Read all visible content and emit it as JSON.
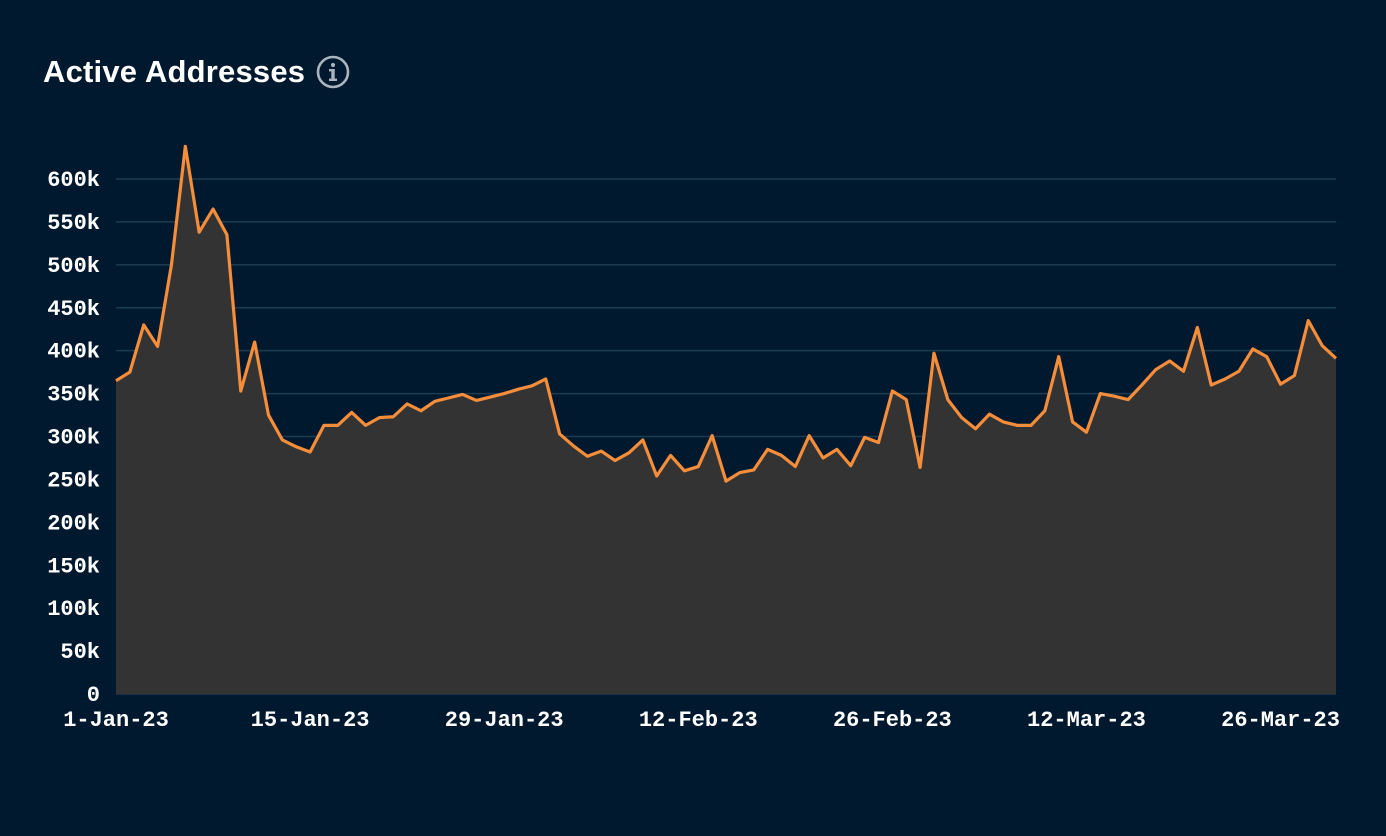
{
  "header": {
    "title": "Active Addresses",
    "info_icon": "info-circle-icon"
  },
  "colors": {
    "background": "#00192e",
    "line": "#f58d3a",
    "area": "#333333",
    "grid": "#1d3c52",
    "icon": "#aab4bd"
  },
  "chart_data": {
    "type": "area",
    "title": "Active Addresses",
    "xlabel": "",
    "ylabel": "",
    "ylim": [
      0,
      600000
    ],
    "grid": true,
    "legend": "none",
    "x_start": "2023-01-01",
    "x_end": "2023-03-30",
    "yticks": [
      0,
      50000,
      100000,
      150000,
      200000,
      250000,
      300000,
      350000,
      400000,
      450000,
      500000,
      550000,
      600000
    ],
    "ytick_labels": [
      "0",
      "50k",
      "100k",
      "150k",
      "200k",
      "250k",
      "300k",
      "350k",
      "400k",
      "450k",
      "500k",
      "550k",
      "600k"
    ],
    "xticks": [
      "2023-01-01",
      "2023-01-15",
      "2023-01-29",
      "2023-02-12",
      "2023-02-26",
      "2023-03-12",
      "2023-03-26"
    ],
    "xtick_labels": [
      "1-Jan-23",
      "15-Jan-23",
      "29-Jan-23",
      "12-Feb-23",
      "26-Feb-23",
      "12-Mar-23",
      "26-Mar-23"
    ],
    "series": [
      {
        "values": [
          365000,
          375000,
          430000,
          405000,
          500000,
          638000,
          538000,
          565000,
          535000,
          353000,
          410000,
          325000,
          296000,
          288000,
          282000,
          313000,
          313000,
          328000,
          313000,
          322000,
          323000,
          338000,
          330000,
          341000,
          345000,
          349000,
          342000,
          346000,
          350000,
          355000,
          359000,
          367000,
          303000,
          289000,
          277000,
          283000,
          272000,
          281000,
          296000,
          254000,
          278000,
          260000,
          265000,
          301000,
          248000,
          258000,
          261000,
          285000,
          278000,
          265000,
          301000,
          275000,
          285000,
          266000,
          299000,
          293000,
          353000,
          343000,
          264000,
          397000,
          343000,
          322000,
          309000,
          326000,
          317000,
          313000,
          313000,
          330000,
          393000,
          317000,
          305000,
          350000,
          347000,
          343000,
          360000,
          378000,
          388000,
          376000,
          427000,
          360000,
          367000,
          376000,
          402000,
          393000,
          361000,
          371000,
          435000,
          406000,
          391000
        ]
      }
    ]
  }
}
